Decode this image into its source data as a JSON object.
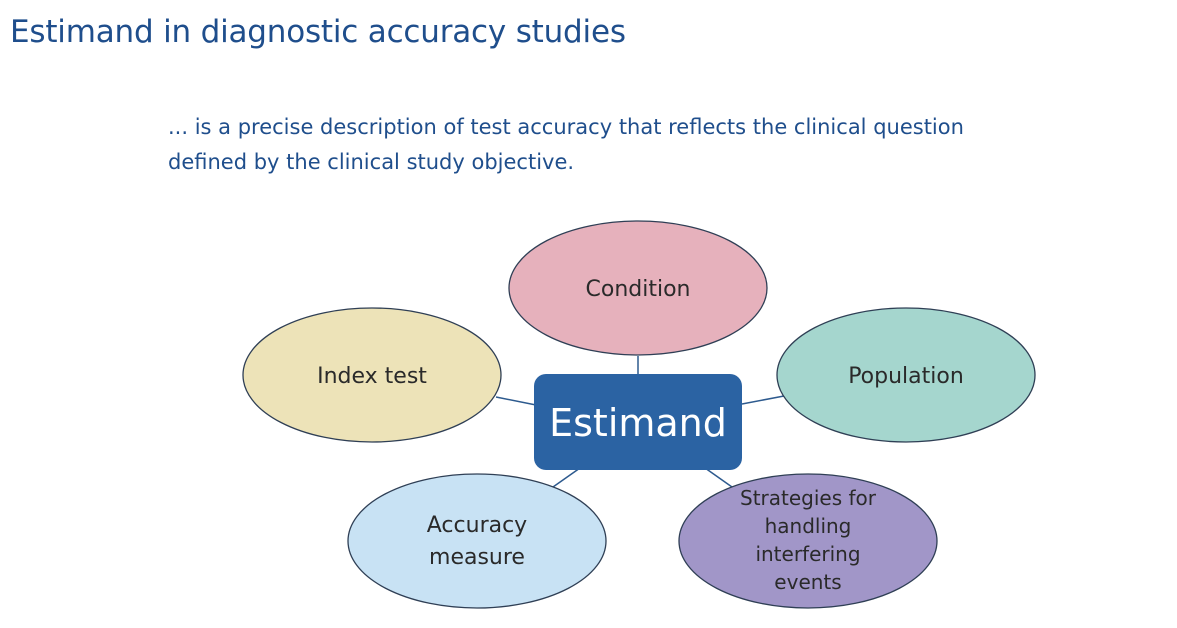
{
  "slide": {
    "title": "Estimand in diagnostic accuracy studies",
    "subtitle_lines": [
      "... is a precise description of test accuracy that reflects the clinical question",
      "defined by the clinical study objective."
    ]
  },
  "diagram": {
    "center": {
      "label": "Estimand",
      "color": "#2b63a3"
    },
    "nodes": [
      {
        "id": "condition",
        "lines": [
          "Condition"
        ],
        "color": "#e6b1bc"
      },
      {
        "id": "index-test",
        "lines": [
          "Index test"
        ],
        "color": "#ede3b8"
      },
      {
        "id": "population",
        "lines": [
          "Population"
        ],
        "color": "#a5d6ce"
      },
      {
        "id": "accuracy-measure",
        "lines": [
          "Accuracy",
          "measure"
        ],
        "color": "#c8e2f4"
      },
      {
        "id": "strategies",
        "lines": [
          "Strategies for",
          "handling",
          "interfering",
          "events"
        ],
        "color": "#a196c8"
      }
    ]
  }
}
